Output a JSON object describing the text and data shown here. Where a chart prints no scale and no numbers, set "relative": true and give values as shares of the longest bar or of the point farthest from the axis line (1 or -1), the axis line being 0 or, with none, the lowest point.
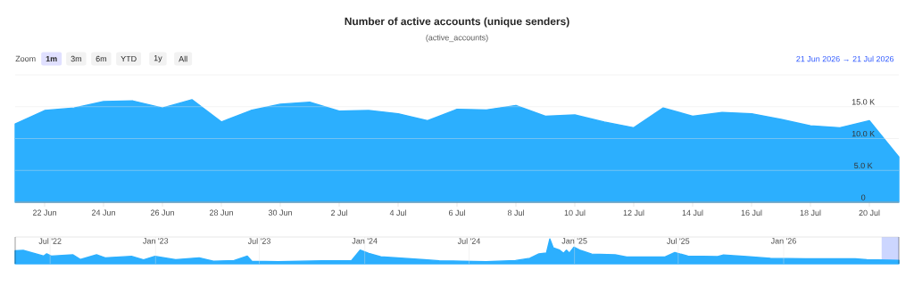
{
  "chart_data": [
    {
      "type": "area",
      "title": "Number of active accounts (unique senders)",
      "subtitle": "(active_accounts)",
      "annotations": [
        "Zoom",
        "1m",
        "3m",
        "6m",
        "YTD",
        "1y",
        "All",
        "21 Jun 2026 → 21 Jul 2026"
      ],
      "x": [
        "2026-06-21",
        "2026-06-22",
        "2026-06-23",
        "2026-06-24",
        "2026-06-25",
        "2026-06-26",
        "2026-06-27",
        "2026-06-28",
        "2026-06-29",
        "2026-06-30",
        "2026-07-01",
        "2026-07-02",
        "2026-07-03",
        "2026-07-04",
        "2026-07-05",
        "2026-07-06",
        "2026-07-07",
        "2026-07-08",
        "2026-07-09",
        "2026-07-10",
        "2026-07-11",
        "2026-07-12",
        "2026-07-13",
        "2026-07-14",
        "2026-07-15",
        "2026-07-16",
        "2026-07-17",
        "2026-07-18",
        "2026-07-19",
        "2026-07-20",
        "2026-07-21"
      ],
      "values": [
        12300,
        14400,
        14800,
        15800,
        15900,
        14800,
        16100,
        12600,
        14400,
        15400,
        15700,
        14300,
        14400,
        13900,
        12800,
        14600,
        14500,
        15200,
        13500,
        13700,
        12600,
        11700,
        14800,
        13500,
        14100,
        13900,
        13000,
        12000,
        11700,
        12800,
        7100
      ],
      "color": "#2caffe",
      "xlim": [
        "2026-06-21",
        "2026-07-21"
      ],
      "xticks": [
        {
          "value": "2026-06-22",
          "label": "22 Jun"
        },
        {
          "value": "2026-06-24",
          "label": "24 Jun"
        },
        {
          "value": "2026-06-26",
          "label": "26 Jun"
        },
        {
          "value": "2026-06-28",
          "label": "28 Jun"
        },
        {
          "value": "2026-06-30",
          "label": "30 Jun"
        },
        {
          "value": "2026-07-02",
          "label": "2 Jul"
        },
        {
          "value": "2026-07-04",
          "label": "4 Jul"
        },
        {
          "value": "2026-07-06",
          "label": "6 Jul"
        },
        {
          "value": "2026-07-08",
          "label": "8 Jul"
        },
        {
          "value": "2026-07-10",
          "label": "10 Jul"
        },
        {
          "value": "2026-07-12",
          "label": "12 Jul"
        },
        {
          "value": "2026-07-14",
          "label": "14 Jul"
        },
        {
          "value": "2026-07-16",
          "label": "16 Jul"
        },
        {
          "value": "2026-07-18",
          "label": "18 Jul"
        },
        {
          "value": "2026-07-20",
          "label": "20 Jul"
        }
      ],
      "ylim": [
        0,
        20000
      ],
      "yticks": [
        {
          "value": 0,
          "label": "0"
        },
        {
          "value": 5000,
          "label": "5.0 K"
        },
        {
          "value": 10000,
          "label": "10.0 K"
        },
        {
          "value": 15000,
          "label": "15.0 K"
        },
        {
          "value": 20000,
          "label": null
        }
      ],
      "grid": "y"
    },
    {
      "type": "area",
      "relative": true,
      "x": [
        "2022-05-01",
        "2022-05-15",
        "2022-06-20",
        "2022-06-25",
        "2022-07-03",
        "2022-08-10",
        "2022-08-23",
        "2022-09-20",
        "2022-10-05",
        "2022-11-20",
        "2022-12-11",
        "2022-12-31",
        "2023-02-05",
        "2023-03-18",
        "2023-04-12",
        "2023-05-18",
        "2023-06-10",
        "2023-06-18",
        "2023-08-03",
        "2023-10-19",
        "2023-12-09",
        "2023-12-24",
        "2024-01-08",
        "2024-01-29",
        "2024-04-14",
        "2024-05-10",
        "2024-06-18",
        "2024-07-31",
        "2024-09-20",
        "2024-10-15",
        "2024-10-31",
        "2024-11-13",
        "2024-11-19",
        "2024-11-25",
        "2024-12-06",
        "2024-12-13",
        "2024-12-18",
        "2024-12-23",
        "2024-12-31",
        "2025-01-10",
        "2025-01-31",
        "2025-03-13",
        "2025-04-02",
        "2025-06-08",
        "2025-06-25",
        "2025-07-18",
        "2025-09-08",
        "2025-09-18",
        "2025-10-29",
        "2025-12-09",
        "2026-02-08",
        "2026-05-06",
        "2026-05-26",
        "2026-07-21"
      ],
      "values": [
        0.52,
        0.54,
        0.31,
        0.4,
        0.31,
        0.36,
        0.17,
        0.36,
        0.24,
        0.3,
        0.16,
        0.3,
        0.16,
        0.24,
        0.1,
        0.13,
        0.31,
        0.1,
        0.08,
        0.12,
        0.13,
        0.55,
        0.42,
        0.28,
        0.16,
        0.12,
        0.1,
        0.08,
        0.13,
        0.22,
        0.4,
        0.43,
        1,
        0.64,
        0.55,
        0.42,
        0.55,
        0.43,
        0.67,
        0.55,
        0.39,
        0.36,
        0.27,
        0.27,
        0.45,
        0.31,
        0.29,
        0.35,
        0.29,
        0.22,
        0.2,
        0.2,
        0.16,
        0.14
      ],
      "color": "#2caffe",
      "xlim": [
        "2022-05-01",
        "2026-07-21"
      ],
      "xticks": [
        {
          "value": "2022-07-01",
          "label": "Jul '22"
        },
        {
          "value": "2023-01-01",
          "label": "Jan '23"
        },
        {
          "value": "2023-07-01",
          "label": "Jul '23"
        },
        {
          "value": "2024-01-01",
          "label": "Jan '24"
        },
        {
          "value": "2024-07-01",
          "label": "Jul '24"
        },
        {
          "value": "2025-01-01",
          "label": "Jan '25"
        },
        {
          "value": "2025-07-01",
          "label": "Jul '25"
        },
        {
          "value": "2026-01-01",
          "label": "Jan '26"
        }
      ],
      "grid": "x",
      "bands": [
        {
          "axis": "x",
          "from": "2026-06-21",
          "to": "2026-07-21",
          "color": "#ccd6ff"
        }
      ]
    }
  ]
}
